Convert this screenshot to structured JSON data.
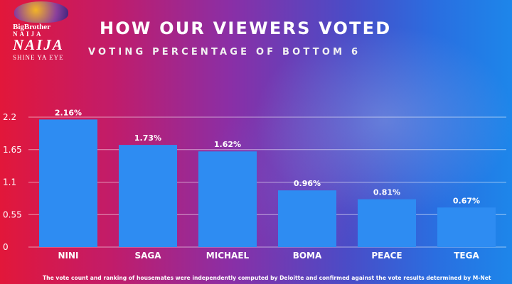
{
  "logo": {
    "line1": "BigBrother",
    "line2": "NAIJA",
    "line3": "NAIJA",
    "tagline": "SHINE YA EYE"
  },
  "title": "HOW OUR VIEWERS VOTED",
  "subtitle": "VOTING PERCENTAGE OF BOTTOM 6",
  "footnote": "The vote count and ranking of housemates were independently computed by Deloitte and confirmed against the vote results determined by M-Net",
  "colors": {
    "bar": "#2e8cf2"
  },
  "chart_data": {
    "type": "bar",
    "categories": [
      "NINI",
      "SAGA",
      "MICHAEL",
      "BOMA",
      "PEACE",
      "TEGA"
    ],
    "values": [
      2.16,
      1.73,
      1.62,
      0.96,
      0.81,
      0.67
    ],
    "value_labels": [
      "2.16%",
      "1.73%",
      "1.62%",
      "0.96%",
      "0.81%",
      "0.67%"
    ],
    "yticks": [
      "0",
      "0.55",
      "1.1",
      "1.65",
      "2.2"
    ],
    "ylim": [
      0,
      2.2
    ],
    "grid": true,
    "title": "VOTING PERCENTAGE OF BOTTOM 6",
    "xlabel": "",
    "ylabel": ""
  }
}
